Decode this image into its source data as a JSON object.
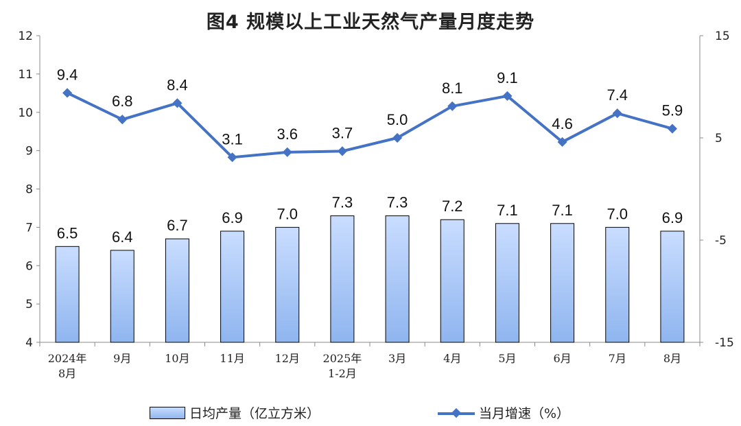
{
  "title": "图4  规模以上工业天然气产量月度走势",
  "legend": {
    "bar_label": "日均产量（亿立方米）",
    "line_label": "当月增速（%）"
  },
  "colors": {
    "bar_fill_top": "#c9ddff",
    "bar_fill_bottom": "#8fb5ef",
    "bar_stroke": "#000000",
    "line": "#4472c4",
    "axis": "#888888"
  },
  "chart_data": {
    "type": "bar",
    "categories": [
      "2024年\n8月",
      "9月",
      "10月",
      "11月",
      "12月",
      "2025年\n1-2月",
      "3月",
      "4月",
      "5月",
      "6月",
      "7月",
      "8月"
    ],
    "series": [
      {
        "name": "日均产量（亿立方米）",
        "type": "bar",
        "axis": "left",
        "values": [
          6.5,
          6.4,
          6.7,
          6.9,
          7.0,
          7.3,
          7.3,
          7.2,
          7.1,
          7.1,
          7.0,
          6.9
        ],
        "labels": [
          "6.5",
          "6.4",
          "6.7",
          "6.9",
          "7.0",
          "7.3",
          "7.3",
          "7.2",
          "7.1",
          "7.1",
          "7.0",
          "6.9"
        ]
      },
      {
        "name": "当月增速（%）",
        "type": "line",
        "axis": "right",
        "marker": "diamond",
        "values": [
          9.4,
          6.8,
          8.4,
          3.1,
          3.6,
          3.7,
          5.0,
          8.1,
          9.1,
          4.6,
          7.4,
          5.9
        ],
        "labels": [
          "9.4",
          "6.8",
          "8.4",
          "3.1",
          "3.6",
          "3.7",
          "5.0",
          "8.1",
          "9.1",
          "4.6",
          "7.4",
          "5.9"
        ]
      }
    ],
    "y_left": {
      "range": [
        4,
        12
      ],
      "ticks": [
        "4",
        "5",
        "6",
        "7",
        "8",
        "9",
        "10",
        "11",
        "12"
      ]
    },
    "y_right": {
      "range": [
        -15,
        15
      ],
      "ticks": [
        "-15",
        "-5",
        "5",
        "15"
      ]
    },
    "grid": false,
    "legend_position": "bottom"
  }
}
